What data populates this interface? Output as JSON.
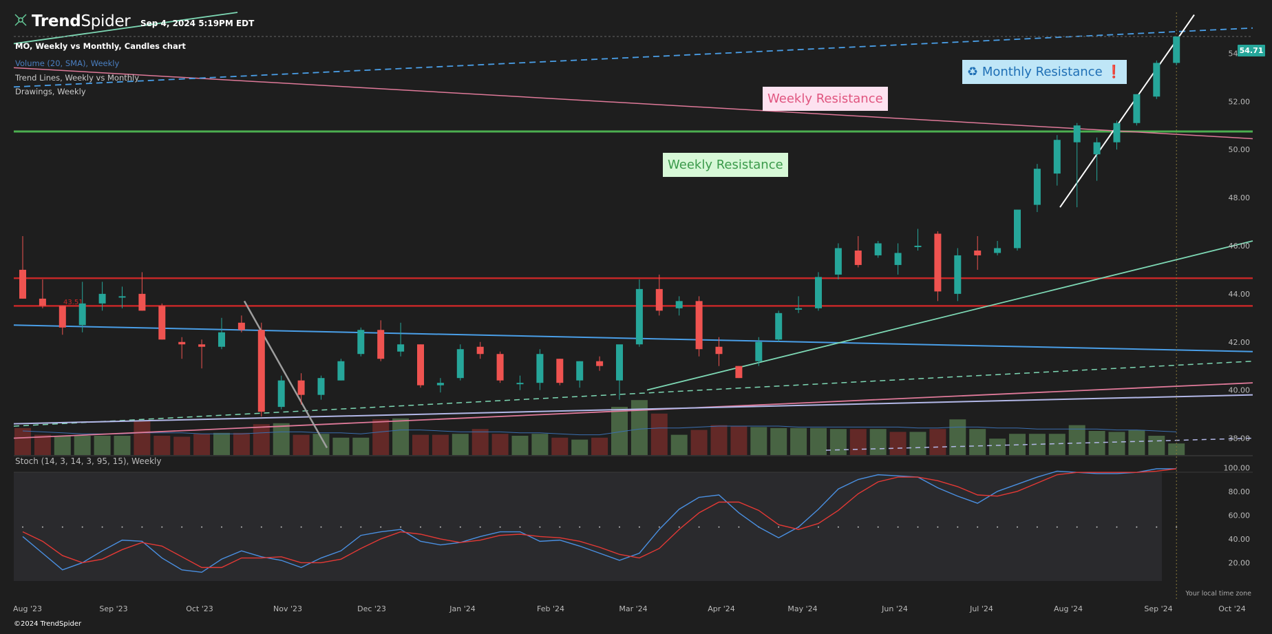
{
  "brand": {
    "name_bold": "Trend",
    "name_light": "Spider",
    "timestamp": "Sep 4, 2024 5:19PM EDT",
    "copyright": "©2024 TrendSpider"
  },
  "legend": {
    "main": "MO, Weekly vs Monthly, Candles chart",
    "volume": "Volume (20, SMA), Weekly",
    "trendlines": "Trend Lines, Weekly vs Monthly",
    "drawings": "Drawings, Weekly"
  },
  "annotations": {
    "monthly_resistance": "♻ Monthly Resistance ❗",
    "weekly_resistance_pink": "Weekly Resistance",
    "weekly_resistance_green": "Weekly Resistance"
  },
  "colors": {
    "up": "#26a69a",
    "down": "#ef5350",
    "background": "#1e1e1e",
    "stoch_k": "#4a90e2",
    "stoch_d": "#e53935"
  },
  "current_price": "54.71",
  "level_label": "43.51",
  "timezone_label": "Your local time zone",
  "chart_data": [
    {
      "type": "candlestick",
      "title": "MO, Weekly vs Monthly, Candles chart",
      "x_tick_labels": [
        "Aug '23",
        "Sep '23",
        "Oct '23",
        "Nov '23",
        "Dec '23",
        "Jan '24",
        "Feb '24",
        "Mar '24",
        "Apr '24",
        "May '24",
        "Jun '24",
        "Jul '24",
        "Aug '24",
        "Sep '24",
        "Oct '24"
      ],
      "y_tick_labels": [
        "54.00",
        "52.00",
        "50.00",
        "48.00",
        "46.00",
        "44.00",
        "42.00",
        "40.00",
        "38.00"
      ],
      "ylim": [
        37.3,
        55.7
      ],
      "grid": false,
      "candles": [
        {
          "o": 45.0,
          "h": 46.4,
          "l": 43.8,
          "c": 43.8
        },
        {
          "o": 43.8,
          "h": 44.6,
          "l": 43.4,
          "c": 43.5
        },
        {
          "o": 43.5,
          "h": 43.5,
          "l": 42.3,
          "c": 42.6
        },
        {
          "o": 42.7,
          "h": 44.5,
          "l": 42.4,
          "c": 43.6
        },
        {
          "o": 43.6,
          "h": 44.5,
          "l": 43.3,
          "c": 44.0
        },
        {
          "o": 43.9,
          "h": 44.3,
          "l": 43.4,
          "c": 43.9
        },
        {
          "o": 44.0,
          "h": 44.9,
          "l": 43.3,
          "c": 43.3
        },
        {
          "o": 43.5,
          "h": 43.6,
          "l": 42.1,
          "c": 42.1
        },
        {
          "o": 42.0,
          "h": 42.2,
          "l": 41.3,
          "c": 41.9
        },
        {
          "o": 41.9,
          "h": 42.1,
          "l": 40.9,
          "c": 41.8
        },
        {
          "o": 41.8,
          "h": 43.0,
          "l": 41.7,
          "c": 42.4
        },
        {
          "o": 42.8,
          "h": 43.1,
          "l": 42.4,
          "c": 42.5
        },
        {
          "o": 42.5,
          "h": 42.8,
          "l": 38.9,
          "c": 39.1
        },
        {
          "o": 39.3,
          "h": 40.6,
          "l": 39.2,
          "c": 40.4
        },
        {
          "o": 40.4,
          "h": 40.7,
          "l": 39.4,
          "c": 39.8
        },
        {
          "o": 39.8,
          "h": 40.6,
          "l": 39.6,
          "c": 40.5
        },
        {
          "o": 40.4,
          "h": 41.3,
          "l": 40.4,
          "c": 41.2
        },
        {
          "o": 41.5,
          "h": 42.6,
          "l": 41.4,
          "c": 42.5
        },
        {
          "o": 42.5,
          "h": 42.9,
          "l": 41.2,
          "c": 41.3
        },
        {
          "o": 41.6,
          "h": 42.8,
          "l": 41.4,
          "c": 41.9
        },
        {
          "o": 41.9,
          "h": 41.9,
          "l": 40.1,
          "c": 40.2
        },
        {
          "o": 40.2,
          "h": 40.5,
          "l": 39.9,
          "c": 40.3
        },
        {
          "o": 40.5,
          "h": 41.9,
          "l": 40.4,
          "c": 41.7
        },
        {
          "o": 41.8,
          "h": 42.0,
          "l": 41.3,
          "c": 41.5
        },
        {
          "o": 41.5,
          "h": 41.6,
          "l": 40.3,
          "c": 40.4
        },
        {
          "o": 40.3,
          "h": 40.6,
          "l": 40.0,
          "c": 40.3
        },
        {
          "o": 40.3,
          "h": 41.7,
          "l": 40.0,
          "c": 41.5
        },
        {
          "o": 41.3,
          "h": 41.3,
          "l": 40.2,
          "c": 40.3
        },
        {
          "o": 40.4,
          "h": 41.2,
          "l": 40.1,
          "c": 41.2
        },
        {
          "o": 41.2,
          "h": 41.4,
          "l": 40.8,
          "c": 41.0
        },
        {
          "o": 40.4,
          "h": 41.8,
          "l": 39.6,
          "c": 41.9
        },
        {
          "o": 41.9,
          "h": 44.6,
          "l": 41.8,
          "c": 44.2
        },
        {
          "o": 44.2,
          "h": 44.8,
          "l": 43.1,
          "c": 43.3
        },
        {
          "o": 43.4,
          "h": 43.9,
          "l": 43.1,
          "c": 43.7
        },
        {
          "o": 43.7,
          "h": 43.9,
          "l": 41.4,
          "c": 41.7
        },
        {
          "o": 41.8,
          "h": 42.2,
          "l": 41.0,
          "c": 41.5
        },
        {
          "o": 41.0,
          "h": 41.0,
          "l": 40.5,
          "c": 40.5
        },
        {
          "o": 41.2,
          "h": 42.2,
          "l": 41.0,
          "c": 42.0
        },
        {
          "o": 42.1,
          "h": 43.3,
          "l": 42.0,
          "c": 43.2
        },
        {
          "o": 43.4,
          "h": 43.9,
          "l": 43.2,
          "c": 43.4
        },
        {
          "o": 43.4,
          "h": 44.9,
          "l": 43.3,
          "c": 44.7
        },
        {
          "o": 44.8,
          "h": 46.1,
          "l": 44.6,
          "c": 45.9
        },
        {
          "o": 45.8,
          "h": 46.4,
          "l": 45.1,
          "c": 45.2
        },
        {
          "o": 45.6,
          "h": 46.2,
          "l": 45.5,
          "c": 46.1
        },
        {
          "o": 45.2,
          "h": 46.1,
          "l": 44.8,
          "c": 45.7
        },
        {
          "o": 46.0,
          "h": 46.7,
          "l": 45.8,
          "c": 46.0
        },
        {
          "o": 46.5,
          "h": 46.6,
          "l": 43.7,
          "c": 44.1
        },
        {
          "o": 44.0,
          "h": 45.9,
          "l": 43.7,
          "c": 45.6
        },
        {
          "o": 45.8,
          "h": 46.4,
          "l": 45.0,
          "c": 45.6
        },
        {
          "o": 45.7,
          "h": 46.2,
          "l": 45.6,
          "c": 45.9
        },
        {
          "o": 45.9,
          "h": 47.5,
          "l": 45.8,
          "c": 47.5
        },
        {
          "o": 47.7,
          "h": 49.4,
          "l": 47.4,
          "c": 49.2
        },
        {
          "o": 49.0,
          "h": 50.6,
          "l": 48.5,
          "c": 50.4
        },
        {
          "o": 50.3,
          "h": 51.1,
          "l": 47.6,
          "c": 51.0
        },
        {
          "o": 49.8,
          "h": 50.5,
          "l": 48.7,
          "c": 50.3
        },
        {
          "o": 50.3,
          "h": 51.2,
          "l": 50.0,
          "c": 51.1
        },
        {
          "o": 51.1,
          "h": 52.3,
          "l": 51.0,
          "c": 52.3
        },
        {
          "o": 52.2,
          "h": 53.7,
          "l": 52.1,
          "c": 53.6
        },
        {
          "o": 53.6,
          "h": 54.7,
          "l": 53.5,
          "c": 54.7
        }
      ],
      "volume_series": {
        "name": "Volume (20, SMA), Weekly",
        "values": [
          28,
          21,
          20,
          20,
          20,
          20,
          36,
          20,
          19,
          22,
          23,
          23,
          32,
          33,
          21,
          22,
          18,
          18,
          37,
          38,
          21,
          21,
          22,
          27,
          22,
          20,
          22,
          18,
          16,
          18,
          50,
          57,
          43,
          21,
          26,
          31,
          30,
          29,
          28,
          28,
          28,
          27,
          27,
          27,
          24,
          24,
          27,
          37,
          27,
          17,
          22,
          22,
          22,
          31,
          25,
          24,
          26,
          20,
          12
        ],
        "up": [
          false,
          false,
          true,
          true,
          true,
          true,
          false,
          false,
          false,
          false,
          true,
          false,
          false,
          true,
          false,
          true,
          true,
          true,
          false,
          true,
          false,
          false,
          true,
          false,
          false,
          true,
          true,
          false,
          true,
          false,
          true,
          true,
          false,
          true,
          false,
          false,
          false,
          true,
          true,
          true,
          true,
          true,
          false,
          true,
          false,
          true,
          false,
          true,
          true,
          true,
          true,
          true,
          true,
          true,
          true,
          true,
          true,
          true,
          true
        ]
      },
      "sma_values": [
        25,
        24,
        23,
        22,
        22,
        22,
        23,
        23,
        23,
        22,
        22,
        22,
        23,
        24,
        24,
        23,
        23,
        22,
        24,
        26,
        26,
        25,
        24,
        24,
        24,
        23,
        23,
        22,
        21,
        21,
        24,
        27,
        28,
        28,
        29,
        30,
        30,
        30,
        30,
        29,
        29,
        29,
        29,
        29,
        29,
        28,
        28,
        29,
        29,
        28,
        28,
        27,
        27,
        27,
        27,
        26,
        26,
        25,
        24
      ]
    },
    {
      "type": "line",
      "title": "Stoch (14, 3, 14, 3, 95, 15), Weekly",
      "y_tick_labels": [
        "100.00",
        "80.00",
        "60.00",
        "40.00",
        "20.00"
      ],
      "ylim": [
        0,
        110
      ],
      "series": [
        {
          "values": [
            42,
            28,
            14,
            20,
            30,
            39,
            38,
            24,
            14,
            12,
            23,
            30,
            25,
            22,
            16,
            24,
            30,
            43,
            46,
            48,
            38,
            35,
            37,
            42,
            46,
            46,
            38,
            39,
            34,
            28,
            22,
            28,
            48,
            65,
            75,
            77,
            62,
            50,
            41,
            50,
            65,
            82,
            90,
            94,
            93,
            92,
            83,
            76,
            70,
            80,
            86,
            92,
            97,
            96,
            95,
            95,
            96,
            99,
            99
          ]
        },
        {
          "values": [
            46,
            38,
            26,
            20,
            23,
            31,
            37,
            34,
            25,
            16,
            16,
            24,
            24,
            25,
            20,
            20,
            23,
            32,
            40,
            46,
            44,
            40,
            37,
            39,
            43,
            44,
            42,
            41,
            38,
            33,
            27,
            24,
            32,
            48,
            62,
            71,
            71,
            64,
            52,
            48,
            53,
            64,
            78,
            88,
            92,
            92,
            89,
            84,
            77,
            76,
            80,
            87,
            94,
            96,
            96,
            96,
            96,
            97,
            99
          ]
        }
      ]
    }
  ]
}
